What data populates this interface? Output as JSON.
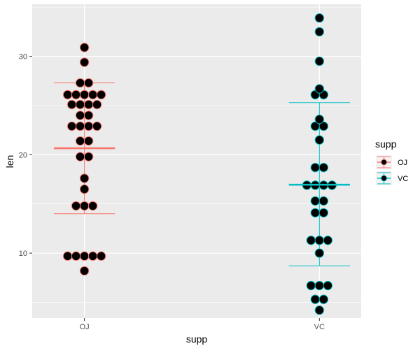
{
  "chart_data": {
    "type": "scatter",
    "subtype": "dotplot",
    "xlabel": "supp",
    "ylabel": "len",
    "ylim": [
      3.4,
      35.3
    ],
    "y_ticks": [
      10,
      20,
      30
    ],
    "y_tick_labels": [
      "10",
      "20",
      "30"
    ],
    "categories": [
      "OJ",
      "VC"
    ],
    "grid": true,
    "legend": {
      "title": "supp",
      "placement": "right",
      "entries": [
        "OJ",
        "VC"
      ]
    },
    "series": [
      {
        "name": "OJ",
        "color": "#F8766D",
        "values": [
          8.2,
          9.7,
          9.7,
          9.7,
          9.7,
          9.7,
          14.8,
          14.8,
          14.8,
          16.5,
          17.6,
          19.8,
          19.8,
          21.4,
          21.4,
          22.9,
          22.9,
          22.9,
          22.9,
          24.0,
          24.0,
          25.1,
          25.1,
          25.1,
          25.1,
          26.1,
          26.1,
          26.1,
          26.1,
          26.1,
          27.3,
          27.3,
          29.4,
          30.9
        ],
        "mean": 20.66,
        "upper": 27.3,
        "lower": 14.0
      },
      {
        "name": "VC",
        "color": "#00BFC4",
        "values": [
          4.2,
          5.3,
          5.3,
          6.7,
          6.7,
          6.7,
          10.0,
          11.3,
          11.3,
          11.3,
          14.1,
          14.1,
          15.3,
          15.3,
          16.9,
          16.9,
          16.9,
          16.9,
          18.7,
          18.7,
          21.5,
          22.9,
          22.9,
          23.6,
          26.1,
          26.1,
          26.7,
          29.5,
          32.5,
          33.9
        ],
        "mean": 16.96,
        "upper": 25.3,
        "lower": 8.7
      }
    ]
  }
}
